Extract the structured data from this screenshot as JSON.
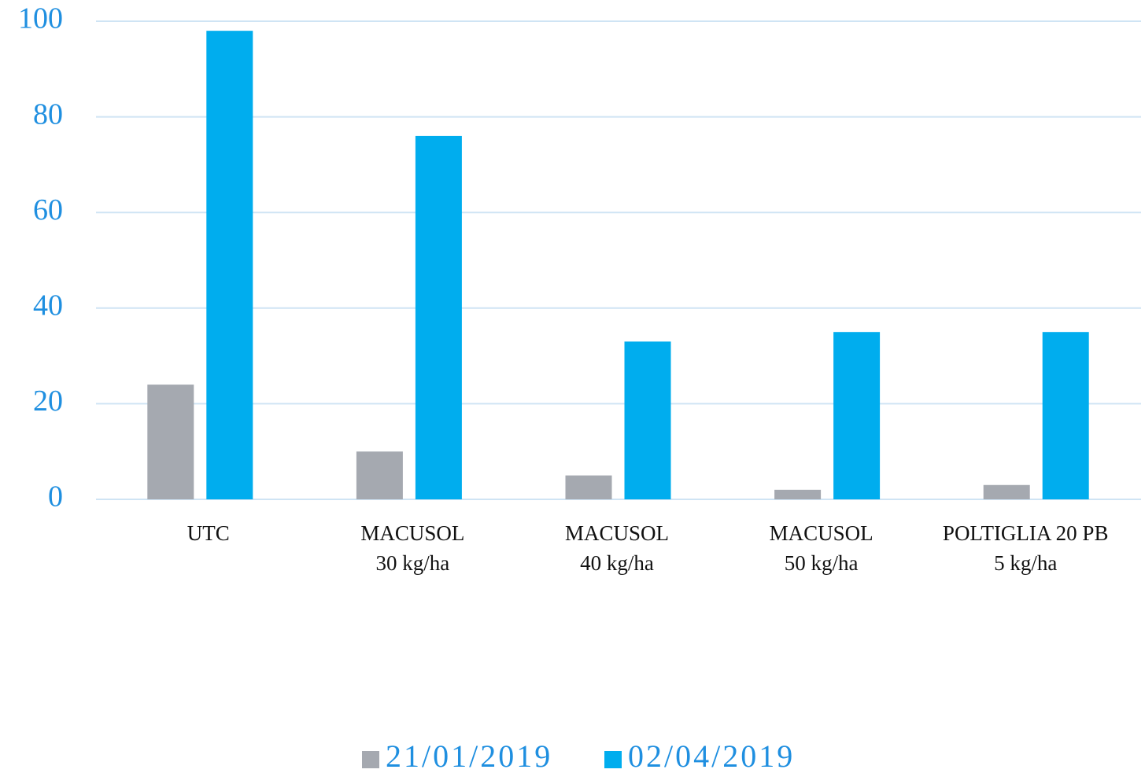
{
  "chart_data": {
    "type": "bar",
    "categories": [
      [
        "UTC"
      ],
      [
        "MACUSOL",
        "30 kg/ha"
      ],
      [
        "MACUSOL",
        "40 kg/ha"
      ],
      [
        "MACUSOL",
        "50 kg/ha"
      ],
      [
        "POLTIGLIA 20 PB",
        "5 kg/ha"
      ]
    ],
    "series": [
      {
        "name": "21/01/2019",
        "color": "#a5a9b0",
        "values": [
          24,
          10,
          5,
          2,
          3
        ]
      },
      {
        "name": "02/04/2019",
        "color": "#00adee",
        "values": [
          98,
          76,
          33,
          35,
          35
        ]
      }
    ],
    "ylim": [
      0,
      100
    ],
    "yticks": [
      0,
      20,
      40,
      60,
      80,
      100
    ],
    "grid": true,
    "legend": "bottom"
  }
}
